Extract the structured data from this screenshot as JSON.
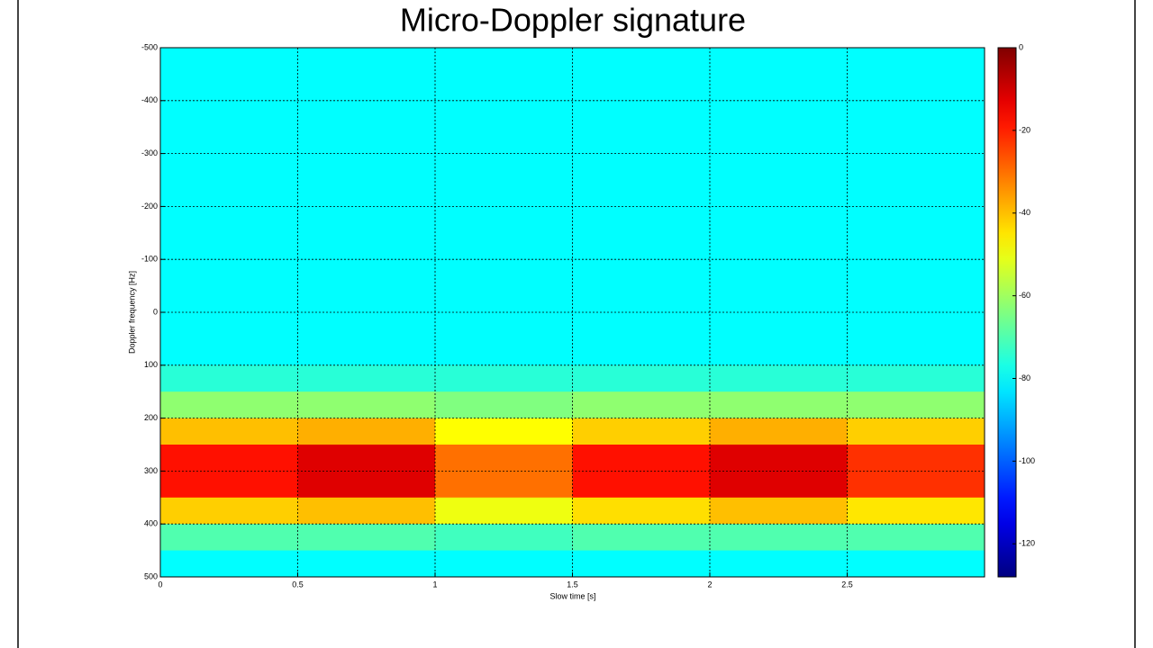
{
  "chart_data": {
    "type": "heatmap",
    "title": "Micro-Doppler signature",
    "xlabel": "Slow time [s]",
    "ylabel": "Doppler frequency [Hz]",
    "xlim": [
      0,
      3
    ],
    "xticks": [
      0,
      0.5,
      1,
      1.5,
      2,
      2.5
    ],
    "ylim": [
      500,
      -500
    ],
    "yticks": [
      -500,
      -400,
      -300,
      -200,
      -100,
      0,
      100,
      200,
      300,
      400,
      500
    ],
    "grid": true,
    "clim": [
      -128,
      0
    ],
    "cticks": [
      0,
      -20,
      -40,
      -60,
      -80,
      -100,
      -120
    ],
    "colormap": "jet",
    "x": [
      0.25,
      0.75,
      1.25,
      1.75,
      2.25,
      2.75
    ],
    "y": [
      -475,
      -425,
      -375,
      -325,
      -275,
      -225,
      -175,
      -125,
      -75,
      -25,
      25,
      75,
      125,
      175,
      225,
      275,
      325,
      375,
      425,
      475
    ],
    "z": [
      [
        -80,
        -80,
        -80,
        -80,
        -80,
        -80
      ],
      [
        -80,
        -80,
        -80,
        -80,
        -80,
        -80
      ],
      [
        -80,
        -80,
        -80,
        -80,
        -80,
        -80
      ],
      [
        -80,
        -80,
        -80,
        -80,
        -80,
        -80
      ],
      [
        -80,
        -80,
        -80,
        -80,
        -80,
        -80
      ],
      [
        -80,
        -80,
        -80,
        -80,
        -80,
        -80
      ],
      [
        -80,
        -80,
        -80,
        -80,
        -80,
        -80
      ],
      [
        -80,
        -80,
        -80,
        -80,
        -80,
        -80
      ],
      [
        -80,
        -80,
        -80,
        -80,
        -80,
        -80
      ],
      [
        -80,
        -80,
        -80,
        -80,
        -80,
        -80
      ],
      [
        -80,
        -80,
        -80,
        -80,
        -80,
        -80
      ],
      [
        -80,
        -80,
        -80,
        -80,
        -80,
        -80
      ],
      [
        -75,
        -75,
        -75,
        -75,
        -75,
        -75
      ],
      [
        -62,
        -62,
        -64,
        -62,
        -62,
        -62
      ],
      [
        -40,
        -38,
        -48,
        -42,
        -38,
        -42
      ],
      [
        -18,
        -12,
        -30,
        -18,
        -12,
        -22
      ],
      [
        -18,
        -12,
        -30,
        -18,
        -12,
        -22
      ],
      [
        -42,
        -40,
        -50,
        -44,
        -40,
        -45
      ],
      [
        -70,
        -70,
        -72,
        -70,
        -70,
        -70
      ],
      [
        -80,
        -80,
        -80,
        -80,
        -80,
        -80
      ]
    ]
  }
}
